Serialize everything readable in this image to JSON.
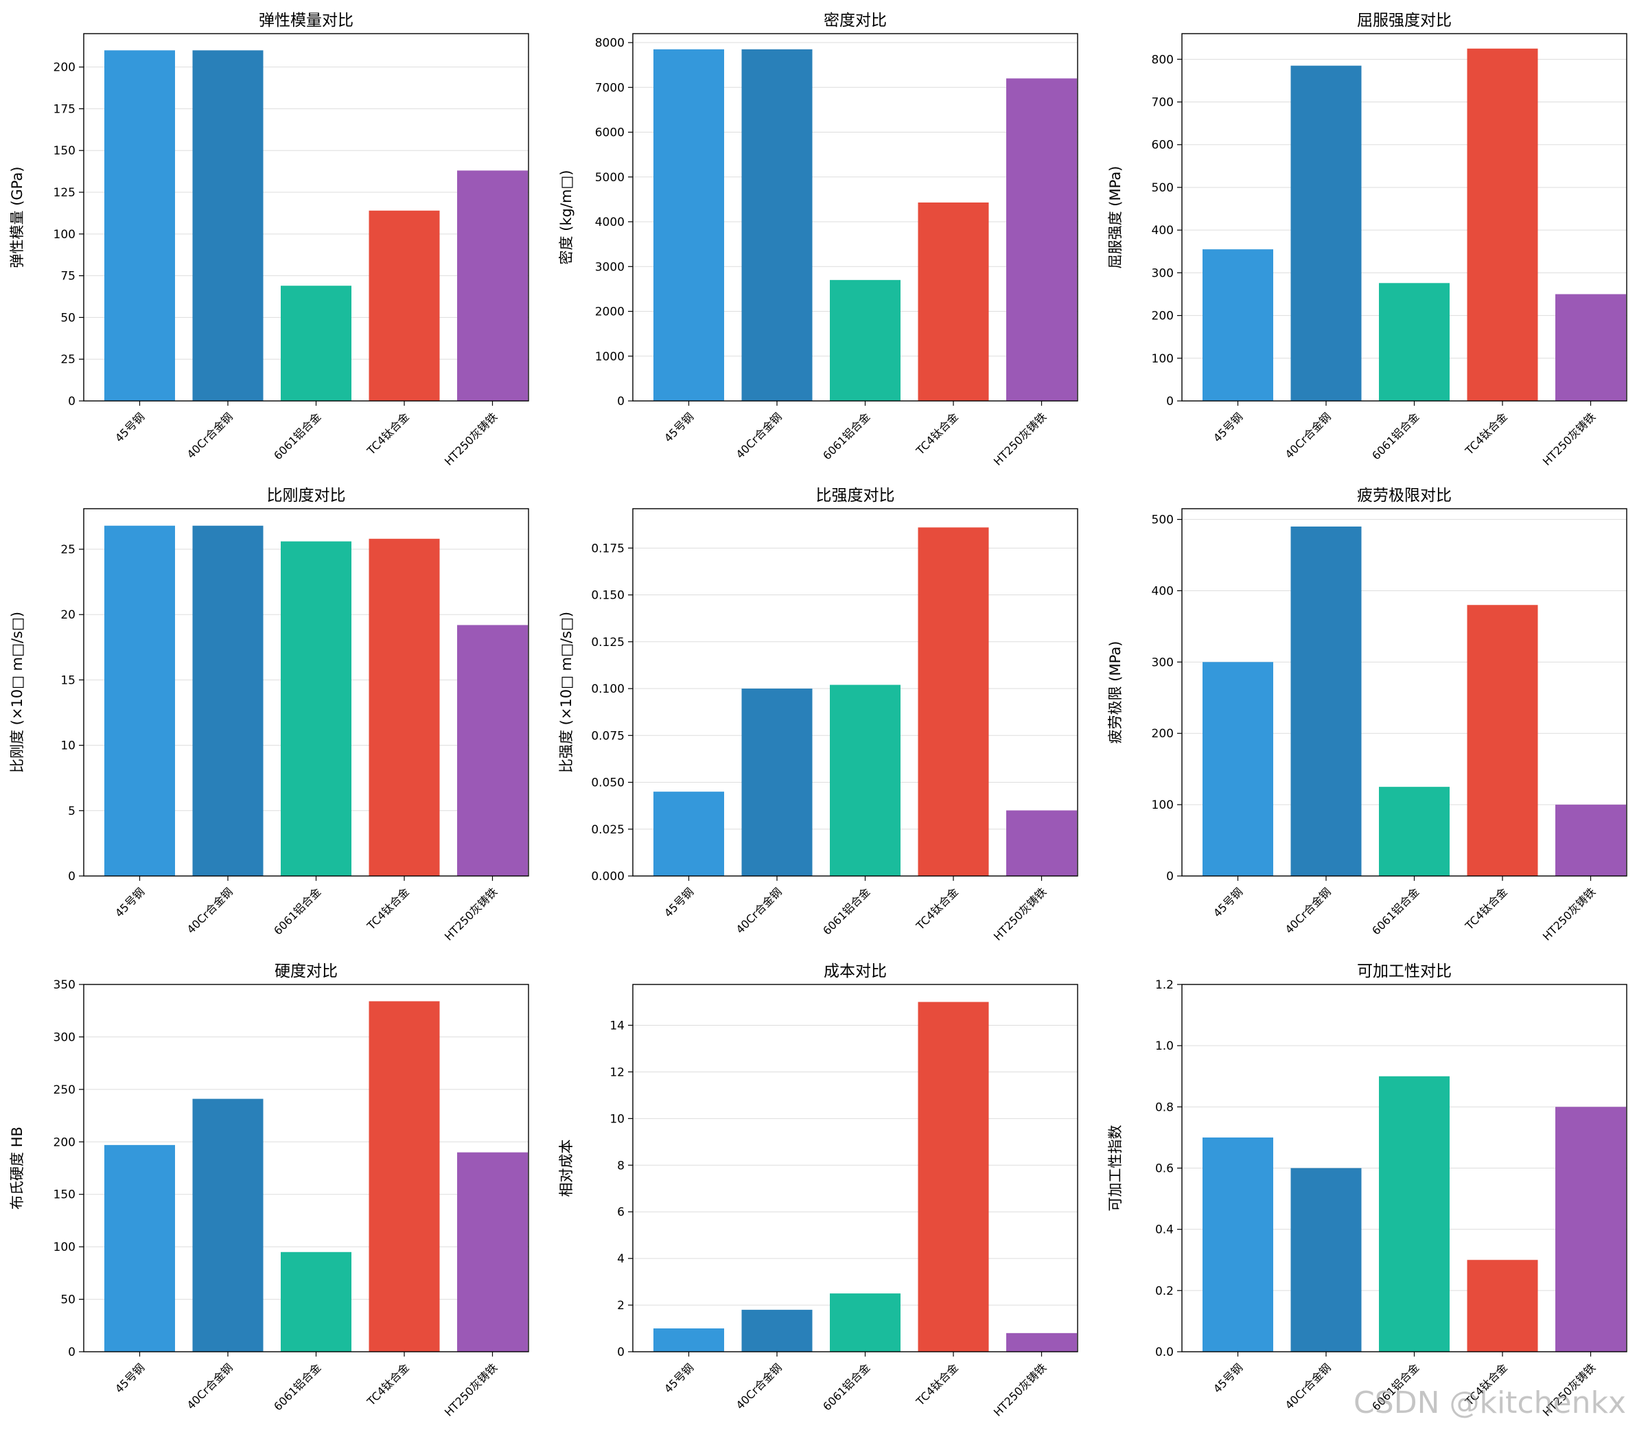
{
  "watermark": "CSDN @kitchenkx",
  "colors": [
    "#3498db",
    "#2980b9",
    "#1abc9c",
    "#e74c3c",
    "#9b59b6"
  ],
  "chart_data": [
    {
      "type": "bar",
      "title": "弹性模量对比",
      "ylabel": "弹性模量 (GPa)",
      "categories": [
        "45号钢",
        "40Cr合金钢",
        "6061铝合金",
        "TC4钛合金",
        "HT250灰铸铁"
      ],
      "values": [
        210,
        210,
        69,
        114,
        138
      ],
      "ylim": [
        0,
        220
      ],
      "yticks": [
        "0",
        "25",
        "50",
        "75",
        "100",
        "125",
        "150",
        "175",
        "200"
      ],
      "grid": true
    },
    {
      "type": "bar",
      "title": "密度对比",
      "ylabel": "密度 (kg/m□)",
      "categories": [
        "45号钢",
        "40Cr合金钢",
        "6061铝合金",
        "TC4钛合金",
        "HT250灰铸铁"
      ],
      "values": [
        7850,
        7850,
        2700,
        4430,
        7200
      ],
      "ylim": [
        0,
        8200
      ],
      "yticks": [
        "0",
        "1000",
        "2000",
        "3000",
        "4000",
        "5000",
        "6000",
        "7000",
        "8000"
      ],
      "grid": true
    },
    {
      "type": "bar",
      "title": "屈服强度对比",
      "ylabel": "屈服强度 (MPa)",
      "categories": [
        "45号钢",
        "40Cr合金钢",
        "6061铝合金",
        "TC4钛合金",
        "HT250灰铸铁"
      ],
      "values": [
        355,
        785,
        276,
        825,
        250
      ],
      "ylim": [
        0,
        860
      ],
      "yticks": [
        "0",
        "100",
        "200",
        "300",
        "400",
        "500",
        "600",
        "700",
        "800"
      ],
      "grid": true
    },
    {
      "type": "bar",
      "title": "比刚度对比",
      "ylabel": "比刚度 (×10□ m□/s□)",
      "categories": [
        "45号钢",
        "40Cr合金钢",
        "6061铝合金",
        "TC4钛合金",
        "HT250灰铸铁"
      ],
      "values": [
        26.8,
        26.8,
        25.6,
        25.8,
        19.2
      ],
      "ylim": [
        0,
        28.1
      ],
      "yticks": [
        "0",
        "5",
        "10",
        "15",
        "20",
        "25"
      ],
      "grid": true
    },
    {
      "type": "bar",
      "title": "比强度对比",
      "ylabel": "比强度 (×10□ m□/s□)",
      "categories": [
        "45号钢",
        "40Cr合金钢",
        "6061铝合金",
        "TC4钛合金",
        "HT250灰铸铁"
      ],
      "values": [
        0.045,
        0.1,
        0.102,
        0.186,
        0.035
      ],
      "ylim": [
        0,
        0.196
      ],
      "yticks": [
        "0.000",
        "0.025",
        "0.050",
        "0.075",
        "0.100",
        "0.125",
        "0.150",
        "0.175"
      ],
      "grid": true
    },
    {
      "type": "bar",
      "title": "疲劳极限对比",
      "ylabel": "疲劳极限 (MPa)",
      "categories": [
        "45号钢",
        "40Cr合金钢",
        "6061铝合金",
        "TC4钛合金",
        "HT250灰铸铁"
      ],
      "values": [
        300,
        490,
        125,
        380,
        100
      ],
      "ylim": [
        0,
        515
      ],
      "yticks": [
        "0",
        "100",
        "200",
        "300",
        "400",
        "500"
      ],
      "grid": true
    },
    {
      "type": "bar",
      "title": "硬度对比",
      "ylabel": "布氏硬度 HB",
      "categories": [
        "45号钢",
        "40Cr合金钢",
        "6061铝合金",
        "TC4钛合金",
        "HT250灰铸铁"
      ],
      "values": [
        197,
        241,
        95,
        334,
        190
      ],
      "ylim": [
        0,
        350
      ],
      "yticks": [
        "0",
        "50",
        "100",
        "150",
        "200",
        "250",
        "300",
        "350"
      ],
      "grid": true
    },
    {
      "type": "bar",
      "title": "成本对比",
      "ylabel": "相对成本",
      "categories": [
        "45号钢",
        "40Cr合金钢",
        "6061铝合金",
        "TC4钛合金",
        "HT250灰铸铁"
      ],
      "values": [
        1.0,
        1.8,
        2.5,
        15.0,
        0.8
      ],
      "ylim": [
        0,
        15.75
      ],
      "yticks": [
        "0",
        "2",
        "4",
        "6",
        "8",
        "10",
        "12",
        "14"
      ],
      "grid": true
    },
    {
      "type": "bar",
      "title": "可加工性对比",
      "ylabel": "可加工性指数",
      "categories": [
        "45号钢",
        "40Cr合金钢",
        "6061铝合金",
        "TC4钛合金",
        "HT250灰铸铁"
      ],
      "values": [
        0.7,
        0.6,
        0.9,
        0.3,
        0.8
      ],
      "ylim": [
        0,
        1.2
      ],
      "yticks": [
        "0.0",
        "0.2",
        "0.4",
        "0.6",
        "0.8",
        "1.0",
        "1.2"
      ],
      "grid": true
    }
  ]
}
